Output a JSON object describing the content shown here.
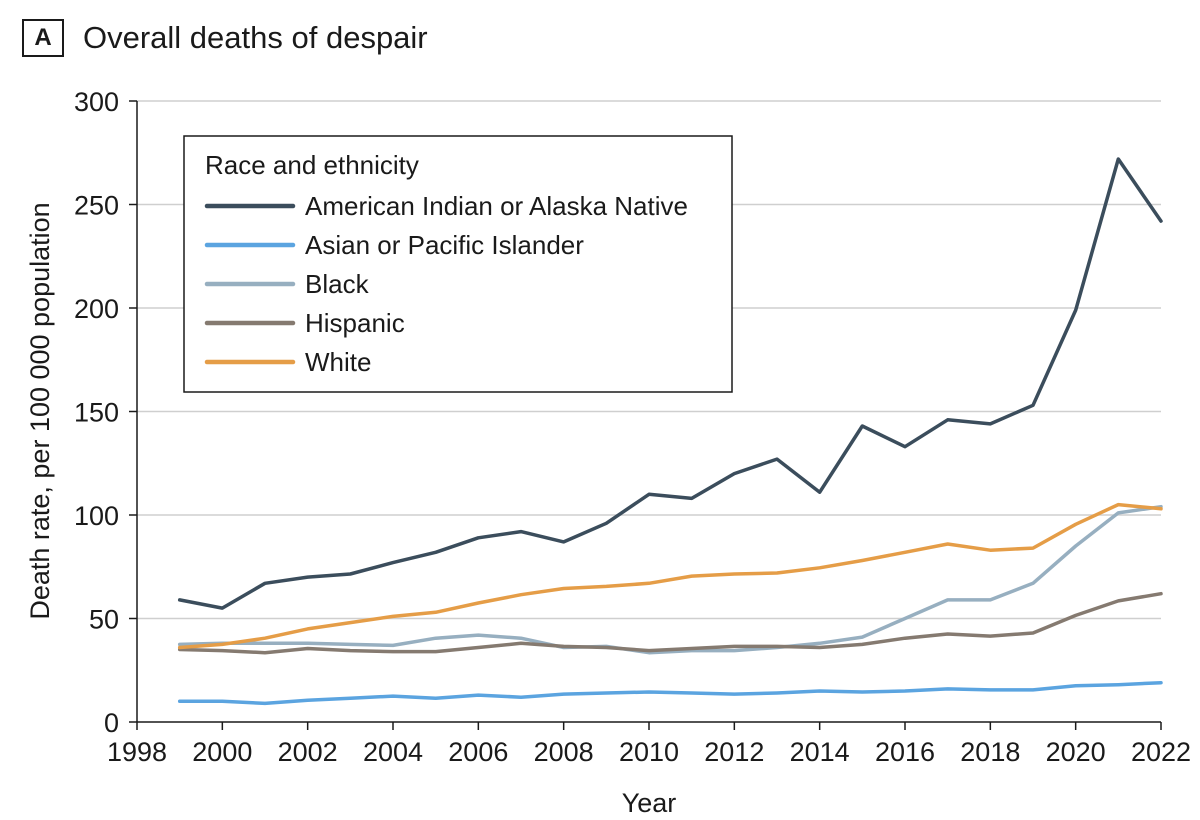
{
  "panel": {
    "badge": "A",
    "title": "Overall deaths of despair"
  },
  "chart_data": {
    "type": "line",
    "xlabel": "Year",
    "ylabel": "Death rate, per 100 000 population",
    "xlim": [
      1998,
      2022
    ],
    "ylim": [
      0,
      300
    ],
    "x_ticks": [
      1998,
      2000,
      2002,
      2004,
      2006,
      2008,
      2010,
      2012,
      2014,
      2016,
      2018,
      2020,
      2022
    ],
    "y_ticks": [
      0,
      50,
      100,
      150,
      200,
      250,
      300
    ],
    "grid": "horizontal",
    "legend_title": "Race and ethnicity",
    "legend_position": "top-left",
    "x": [
      1999,
      2000,
      2001,
      2002,
      2003,
      2004,
      2005,
      2006,
      2007,
      2008,
      2009,
      2010,
      2011,
      2012,
      2013,
      2014,
      2015,
      2016,
      2017,
      2018,
      2019,
      2020,
      2021,
      2022
    ],
    "series": [
      {
        "name": "American Indian or Alaska Native",
        "color": "#3b4d5c",
        "values": [
          59,
          55,
          67,
          70,
          71.5,
          77,
          82,
          89,
          92,
          87,
          96,
          110,
          108,
          120,
          127,
          111,
          143,
          133,
          146,
          144,
          153,
          199,
          272,
          242
        ]
      },
      {
        "name": "Asian or Pacific Islander",
        "color": "#5ba4e0",
        "values": [
          10,
          10,
          9,
          10.5,
          11.5,
          12.5,
          11.5,
          13,
          12,
          13.5,
          14,
          14.5,
          14,
          13.5,
          14,
          15,
          14.5,
          15,
          16,
          15.5,
          15.5,
          17.5,
          18,
          19
        ]
      },
      {
        "name": "Black",
        "color": "#97afc0",
        "values": [
          37.5,
          38,
          38,
          38,
          37.5,
          37,
          40.5,
          42,
          40.5,
          36,
          36.5,
          33.5,
          34.5,
          34.5,
          36,
          38,
          41,
          50,
          59,
          59,
          67,
          85,
          101,
          104
        ]
      },
      {
        "name": "Hispanic",
        "color": "#857a70",
        "values": [
          35,
          34.5,
          33.5,
          35.5,
          34.5,
          34,
          34,
          36,
          38,
          36.5,
          36,
          34.5,
          35.5,
          36.5,
          36.5,
          36,
          37.5,
          40.5,
          42.5,
          41.5,
          43,
          51.5,
          58.5,
          62
        ]
      },
      {
        "name": "White",
        "color": "#e59d47",
        "values": [
          36,
          37.5,
          40.5,
          45,
          48,
          51,
          53,
          57.5,
          61.5,
          64.5,
          65.5,
          67,
          70.5,
          71.5,
          72,
          74.5,
          78,
          82,
          86,
          83,
          84,
          95.5,
          105,
          103
        ]
      }
    ]
  }
}
